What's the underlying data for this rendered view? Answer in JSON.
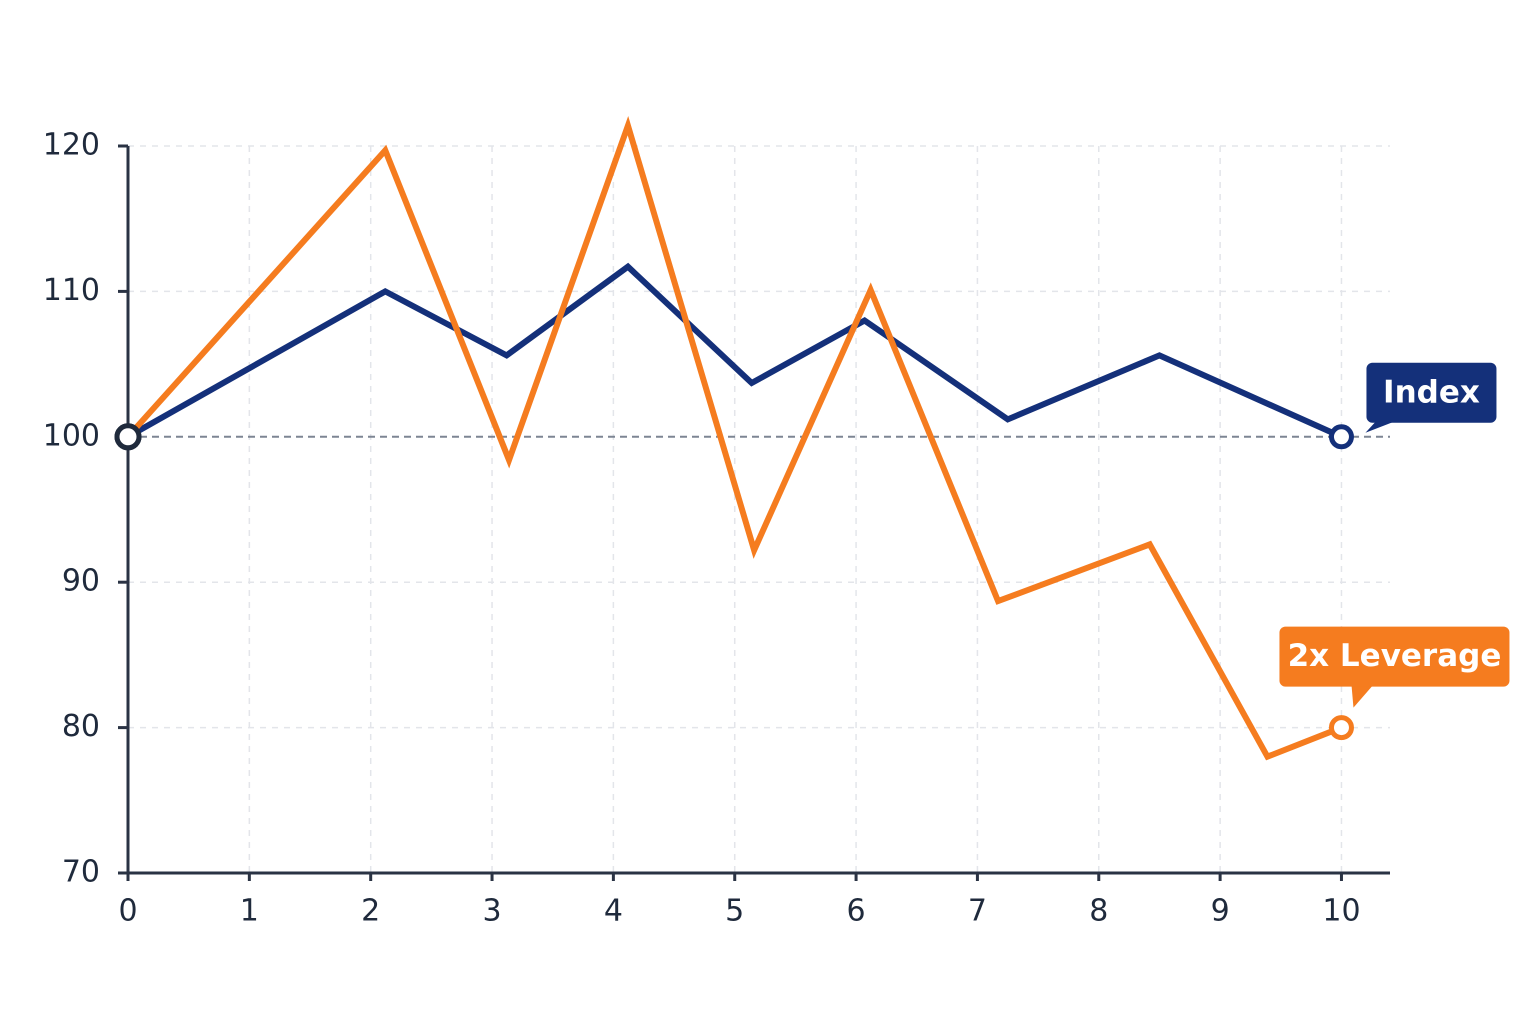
{
  "chart_data": {
    "type": "line",
    "xlim": [
      0,
      10.4
    ],
    "xticks": [
      0,
      1,
      2,
      3,
      4,
      5,
      6,
      7,
      8,
      9,
      10
    ],
    "ylim": [
      70,
      120
    ],
    "yticks": [
      70,
      80,
      90,
      100,
      110,
      120
    ],
    "grid": true,
    "reference_line": 100,
    "series": [
      {
        "name": "Index",
        "color": "#14307a",
        "x": [
          0,
          2.12,
          3.12,
          4.12,
          5.14,
          6.07,
          7.25,
          8.5,
          10
        ],
        "values": [
          100,
          110,
          105.6,
          111.7,
          103.7,
          108,
          101.2,
          105.6,
          100
        ]
      },
      {
        "name": "2x Leverage",
        "color": "#f57c1f",
        "x": [
          0,
          2.12,
          3.14,
          4.12,
          5.16,
          6.12,
          7.17,
          8.42,
          9.39,
          10
        ],
        "values": [
          100,
          119.7,
          98.4,
          121.4,
          92.2,
          110.1,
          88.7,
          92.6,
          78,
          80
        ]
      }
    ]
  }
}
